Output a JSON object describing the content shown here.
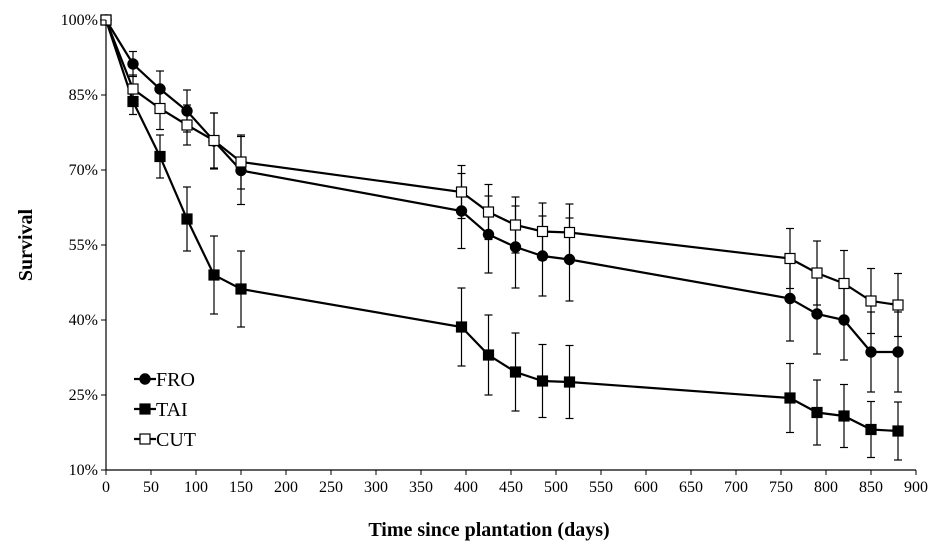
{
  "chart_data": {
    "type": "line",
    "title": "",
    "xlabel": "Time since plantation (days)",
    "ylabel": "Survival",
    "xlim": [
      0,
      900
    ],
    "ylim": [
      10,
      100
    ],
    "xticks": [
      0,
      50,
      100,
      150,
      200,
      250,
      300,
      350,
      400,
      450,
      500,
      550,
      600,
      650,
      700,
      750,
      800,
      850,
      900
    ],
    "xtick_labels": [
      "0",
      "50",
      "100",
      "150",
      "200",
      "250",
      "300",
      "350",
      "400",
      "450",
      "500",
      "550",
      "600",
      "650",
      "700",
      "750",
      "800",
      "850",
      "900"
    ],
    "yticks": [
      10,
      25,
      40,
      55,
      70,
      85,
      100
    ],
    "ytick_labels": [
      "10%",
      "25%",
      "40%",
      "55%",
      "70%",
      "85%",
      "100%"
    ],
    "grid": false,
    "legend_position": "bottom-left",
    "series": [
      {
        "name": "FRO",
        "marker": "filled-circle",
        "x": [
          0,
          30,
          60,
          90,
          120,
          150,
          395,
          425,
          455,
          485,
          515,
          760,
          790,
          820,
          850,
          880
        ],
        "y": [
          100,
          91.2,
          86.2,
          81.8,
          75.8,
          69.9,
          61.8,
          57.1,
          54.6,
          52.8,
          52.1,
          44.3,
          41.2,
          40.0,
          33.6,
          33.6
        ],
        "error": [
          0,
          2.5,
          3.6,
          4.2,
          5.6,
          6.8,
          7.5,
          7.7,
          8.2,
          8.0,
          8.3,
          8.5,
          8.0,
          8.0,
          8.0,
          8.0
        ]
      },
      {
        "name": "TAI",
        "marker": "filled-square",
        "x": [
          0,
          30,
          60,
          90,
          120,
          150,
          395,
          425,
          455,
          485,
          515,
          760,
          790,
          820,
          850,
          880
        ],
        "y": [
          100,
          83.7,
          72.7,
          60.2,
          49.0,
          46.2,
          38.6,
          33.0,
          29.6,
          27.8,
          27.6,
          24.4,
          21.5,
          20.8,
          18.1,
          17.8
        ],
        "error": [
          0,
          2.6,
          4.3,
          6.4,
          7.8,
          7.6,
          7.8,
          8.0,
          7.8,
          7.3,
          7.3,
          6.9,
          6.5,
          6.3,
          5.6,
          5.8
        ]
      },
      {
        "name": "CUT",
        "marker": "open-square",
        "x": [
          0,
          30,
          60,
          90,
          120,
          150,
          395,
          425,
          455,
          485,
          515,
          760,
          790,
          820,
          850,
          880
        ],
        "y": [
          100,
          86.2,
          82.3,
          79.0,
          75.9,
          71.6,
          65.6,
          61.6,
          59.0,
          57.7,
          57.5,
          52.3,
          49.4,
          47.3,
          43.8,
          43.0
        ],
        "error": [
          0,
          2.8,
          4.2,
          4.0,
          5.5,
          5.4,
          5.3,
          5.5,
          5.6,
          5.7,
          5.7,
          6.0,
          6.4,
          6.6,
          6.5,
          6.3
        ]
      }
    ]
  }
}
